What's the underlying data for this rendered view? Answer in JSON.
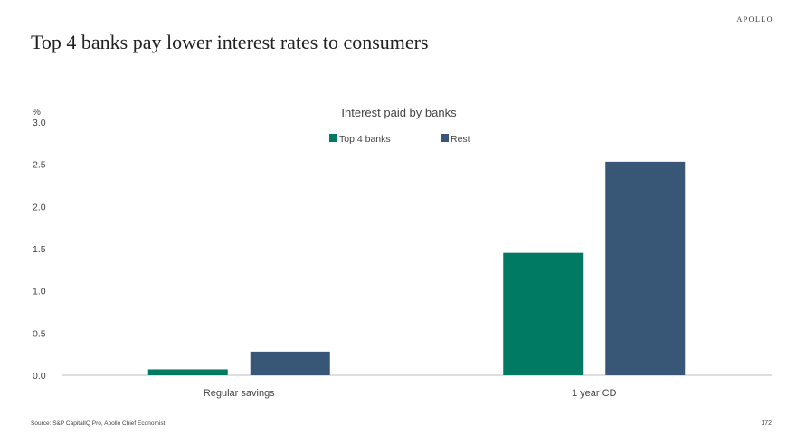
{
  "brand": "APOLLO",
  "page_title": "Top 4 banks pay lower interest rates to consumers",
  "footer": {
    "source": "Source: S&P CapitalIQ Pro, Apollo Chief Economist",
    "page_number": "172"
  },
  "colors": {
    "top4": "#007a63",
    "rest": "#385776",
    "axis": "#bfbfbf"
  },
  "chart_data": {
    "type": "bar",
    "title": "Interest paid by banks",
    "y_unit": "%",
    "categories": [
      "Regular savings",
      "1 year CD"
    ],
    "series": [
      {
        "name": "Top 4 banks",
        "values": [
          0.07,
          1.45
        ]
      },
      {
        "name": "Rest",
        "values": [
          0.28,
          2.53
        ]
      }
    ],
    "ylim": [
      0,
      3.0
    ],
    "yticks": [
      "0.0",
      "0.5",
      "1.0",
      "1.5",
      "2.0",
      "2.5",
      "3.0"
    ],
    "grid": false,
    "legend": "top-center"
  }
}
